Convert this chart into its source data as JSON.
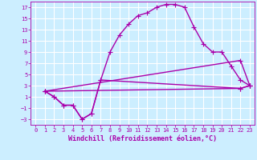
{
  "background_color": "#cceeff",
  "grid_color": "#ffffff",
  "line_color": "#aa00aa",
  "marker": "+",
  "markersize": 4,
  "linewidth": 1.0,
  "xlabel": "Windchill (Refroidissement éolien,°C)",
  "xlabel_fontsize": 6,
  "tick_fontsize": 5,
  "xlim": [
    -0.5,
    23.5
  ],
  "ylim": [
    -4,
    18
  ],
  "xticks": [
    0,
    1,
    2,
    3,
    4,
    5,
    6,
    7,
    8,
    9,
    10,
    11,
    12,
    13,
    14,
    15,
    16,
    17,
    18,
    19,
    20,
    21,
    22,
    23
  ],
  "yticks": [
    -3,
    -1,
    1,
    3,
    5,
    7,
    9,
    11,
    13,
    15,
    17
  ],
  "lines": [
    {
      "x": [
        1,
        2,
        3,
        4,
        5,
        6,
        7,
        8,
        9,
        10,
        11,
        12,
        13,
        14,
        15,
        16,
        17,
        18,
        19,
        20,
        21,
        22,
        23
      ],
      "y": [
        2,
        1,
        -0.5,
        -0.5,
        -3,
        -2,
        4,
        9,
        12,
        14,
        15.5,
        16,
        17,
        17.5,
        17.5,
        17,
        13.5,
        10.5,
        9,
        9,
        6.5,
        4,
        3
      ]
    },
    {
      "x": [
        1,
        2,
        3,
        4,
        5,
        6,
        7,
        22,
        23
      ],
      "y": [
        2,
        1,
        -0.5,
        -0.5,
        -3,
        -2,
        4,
        2.5,
        3
      ]
    },
    {
      "x": [
        1,
        22,
        23
      ],
      "y": [
        2,
        7.5,
        3
      ]
    },
    {
      "x": [
        1,
        22,
        23
      ],
      "y": [
        2,
        2.5,
        3
      ]
    }
  ]
}
